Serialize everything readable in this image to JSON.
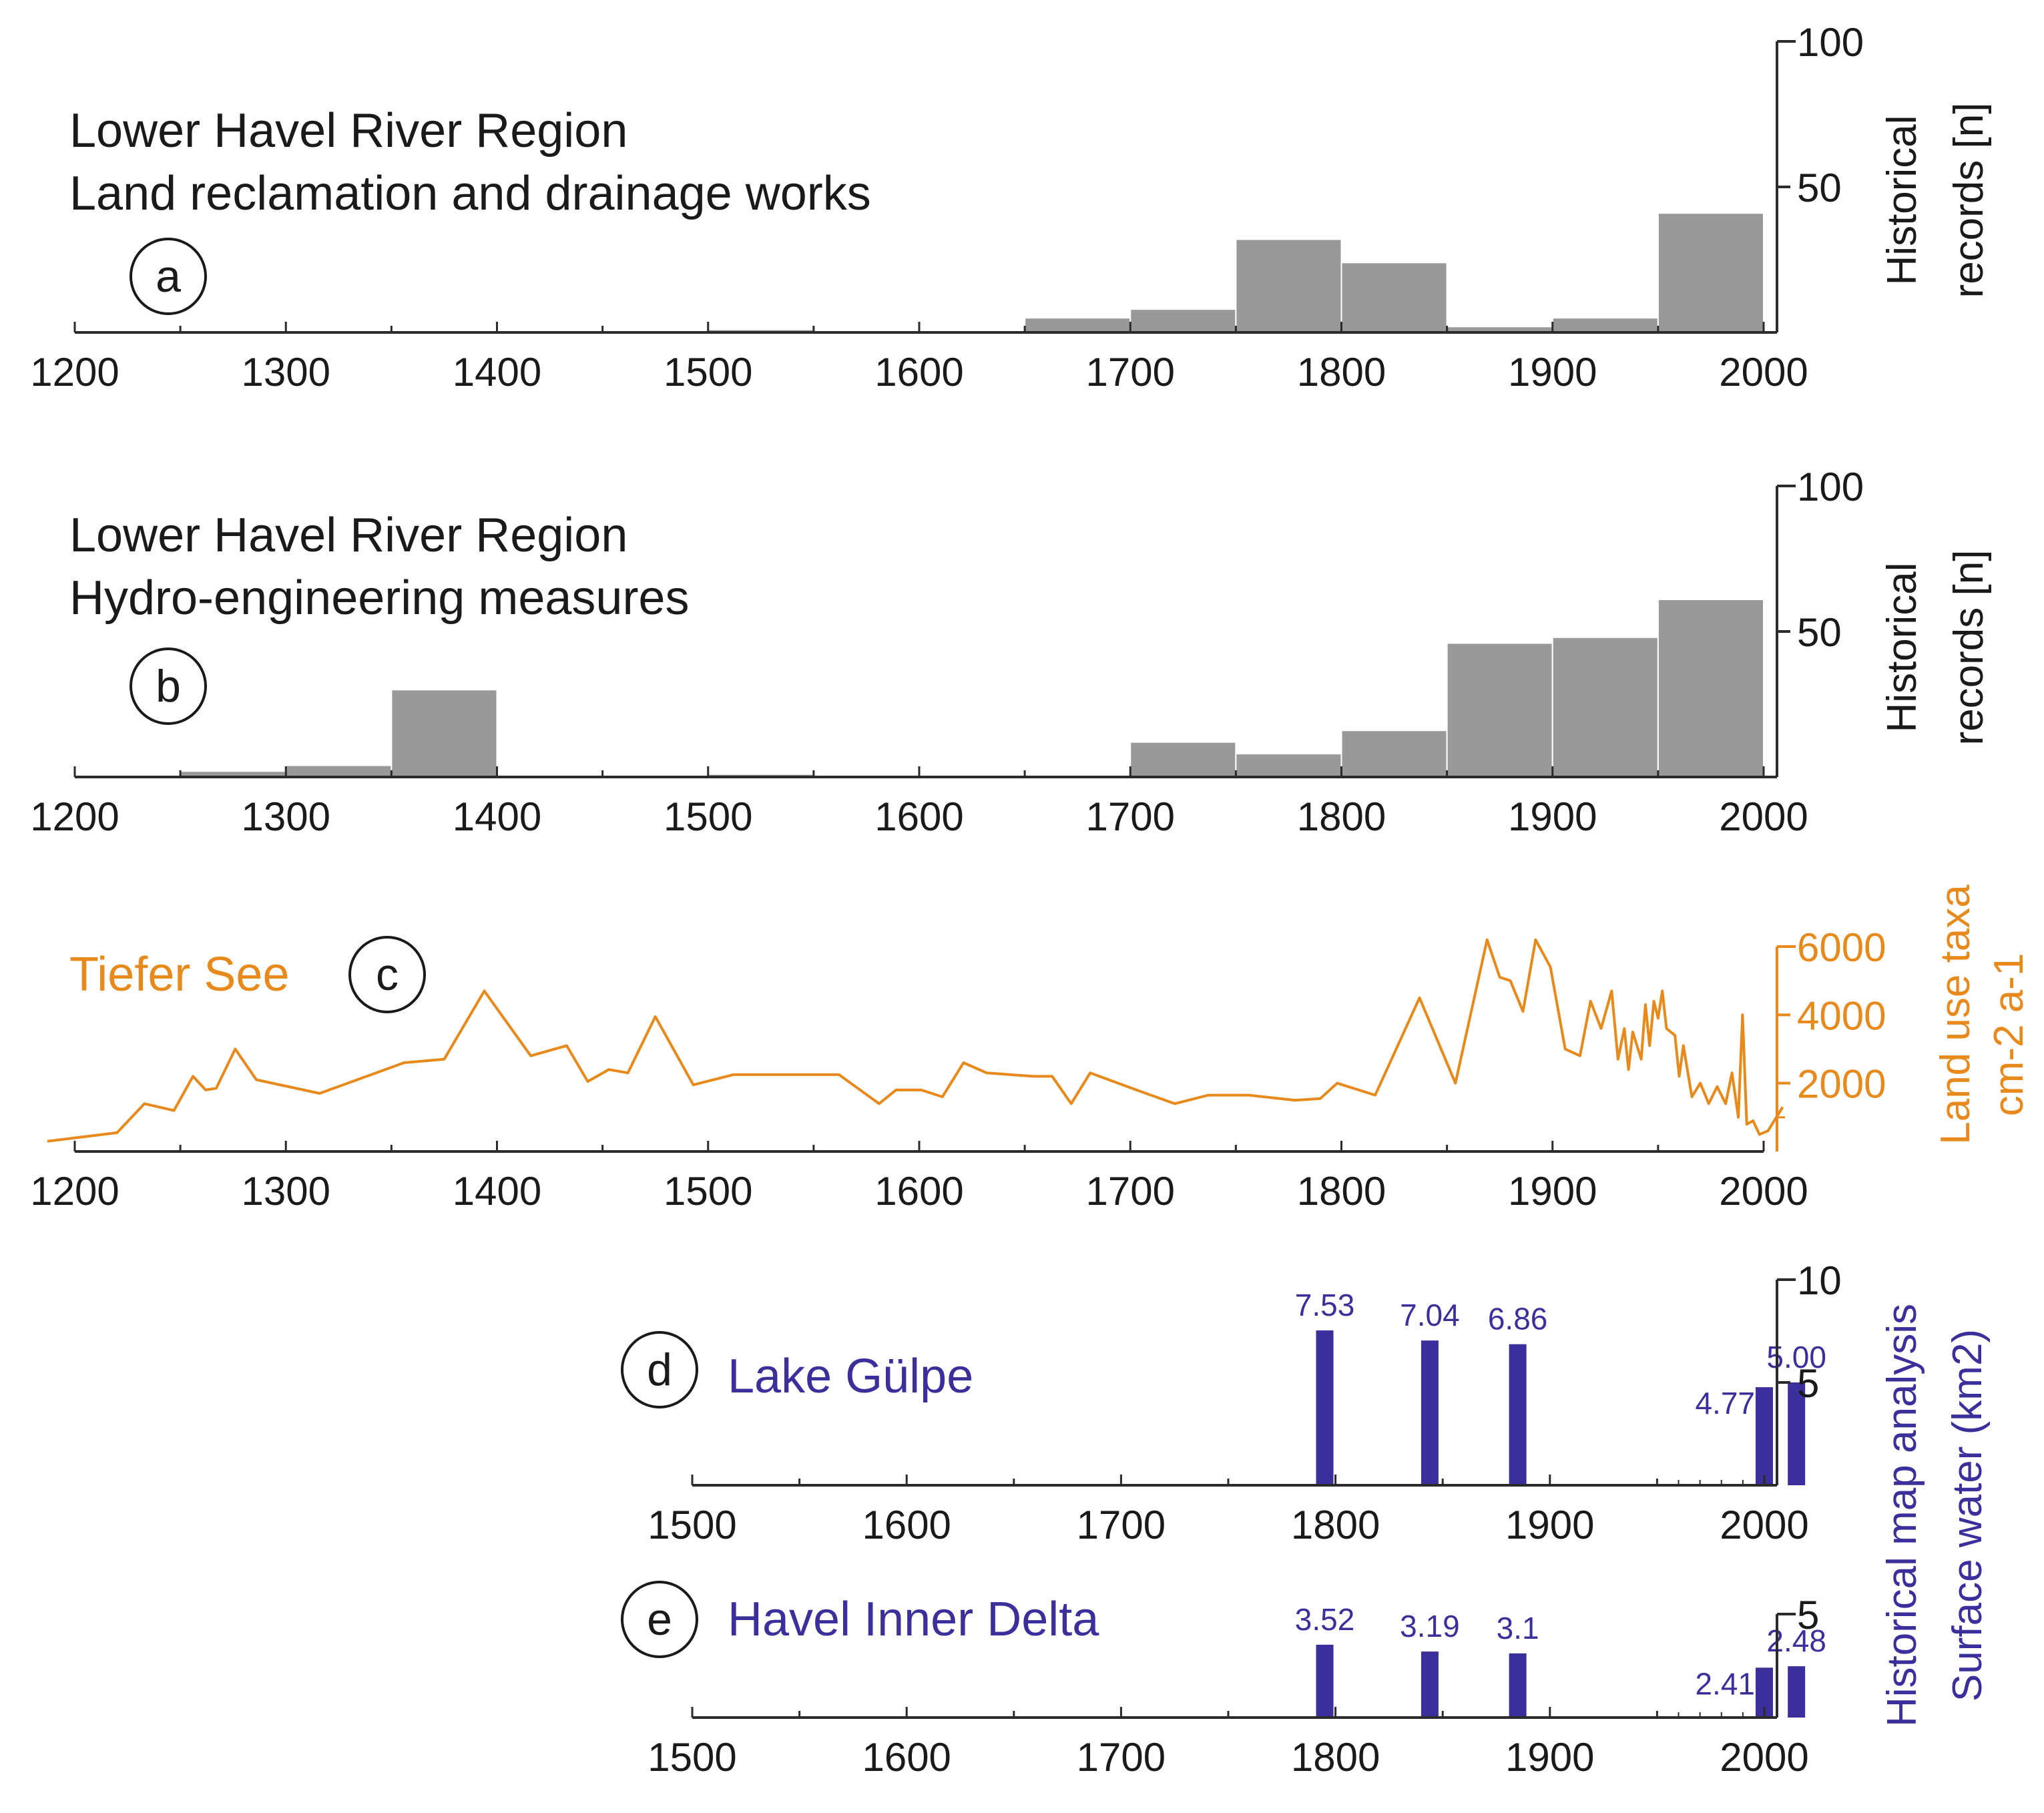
{
  "colors": {
    "bar_gray": "#999999",
    "axis": "#2b2b2b",
    "orange": "#e8891c",
    "blue": "#3b2f9c"
  },
  "chart_data": [
    {
      "id": "a",
      "type": "bar",
      "panel_letter": "a",
      "title_lines": [
        "Lower Havel River Region",
        "Land reclamation and drainage works"
      ],
      "ylabel_lines": [
        "Historical",
        "records [n]"
      ],
      "xlim": [
        1200,
        2000
      ],
      "ylim": [
        0,
        100
      ],
      "x_ticks": [
        1200,
        1300,
        1400,
        1500,
        1600,
        1700,
        1800,
        1900,
        2000
      ],
      "y_ticks": [
        50,
        100
      ],
      "bins": [
        {
          "start": 1500,
          "end": 1550,
          "value": 1
        },
        {
          "start": 1650,
          "end": 1700,
          "value": 5
        },
        {
          "start": 1700,
          "end": 1750,
          "value": 8
        },
        {
          "start": 1750,
          "end": 1800,
          "value": 32
        },
        {
          "start": 1800,
          "end": 1850,
          "value": 24
        },
        {
          "start": 1850,
          "end": 1900,
          "value": 2
        },
        {
          "start": 1900,
          "end": 1950,
          "value": 5
        },
        {
          "start": 1950,
          "end": 2000,
          "value": 41
        }
      ]
    },
    {
      "id": "b",
      "type": "bar",
      "panel_letter": "b",
      "title_lines": [
        "Lower Havel River Region",
        "Hydro-engineering measures"
      ],
      "ylabel_lines": [
        "Historical",
        "records [n]"
      ],
      "xlim": [
        1200,
        2000
      ],
      "ylim": [
        0,
        100
      ],
      "x_ticks": [
        1200,
        1300,
        1400,
        1500,
        1600,
        1700,
        1800,
        1900,
        2000
      ],
      "y_ticks": [
        50,
        100
      ],
      "bins": [
        {
          "start": 1250,
          "end": 1300,
          "value": 2
        },
        {
          "start": 1300,
          "end": 1350,
          "value": 4
        },
        {
          "start": 1350,
          "end": 1400,
          "value": 30
        },
        {
          "start": 1500,
          "end": 1550,
          "value": 1
        },
        {
          "start": 1700,
          "end": 1750,
          "value": 12
        },
        {
          "start": 1750,
          "end": 1800,
          "value": 8
        },
        {
          "start": 1800,
          "end": 1850,
          "value": 16
        },
        {
          "start": 1850,
          "end": 1900,
          "value": 46
        },
        {
          "start": 1900,
          "end": 1950,
          "value": 48
        },
        {
          "start": 1950,
          "end": 2000,
          "value": 61
        }
      ]
    },
    {
      "id": "c",
      "type": "line",
      "panel_letter": "c",
      "title": "Tiefer See",
      "ylabel_lines": [
        "Land use taxa",
        "cm-2 a-1"
      ],
      "xlim": [
        1200,
        2000
      ],
      "ylim": [
        0,
        6000
      ],
      "x_ticks": [
        1200,
        1300,
        1400,
        1500,
        1600,
        1700,
        1800,
        1900,
        2000
      ],
      "y_ticks": [
        2000,
        4000,
        6000
      ],
      "x": [
        1187,
        1220,
        1233,
        1247,
        1256,
        1262,
        1267,
        1276,
        1286,
        1316,
        1356,
        1375,
        1394,
        1416,
        1433,
        1443,
        1453,
        1462,
        1475,
        1493,
        1512,
        1562,
        1581,
        1589,
        1601,
        1611,
        1621,
        1632,
        1654,
        1663,
        1672,
        1681,
        1703,
        1721,
        1737,
        1756,
        1778,
        1790,
        1798,
        1816,
        1837,
        1854,
        1869,
        1875,
        1880,
        1886,
        1892,
        1899,
        1906,
        1913,
        1918,
        1923,
        1928,
        1931,
        1934,
        1936,
        1938,
        1942,
        1944,
        1946,
        1948,
        1950,
        1952,
        1954,
        1956,
        1958,
        1960,
        1962,
        1966,
        1970,
        1974,
        1978,
        1982,
        1985,
        1988,
        1990,
        1992,
        1995,
        1998,
        2002,
        2005,
        2009
      ],
      "y": [
        300,
        550,
        1400,
        1200,
        2200,
        1800,
        1850,
        3000,
        2100,
        1700,
        2600,
        2700,
        4700,
        2800,
        3100,
        2050,
        2400,
        2300,
        3950,
        1950,
        2250,
        2250,
        1400,
        1800,
        1800,
        1600,
        2600,
        2300,
        2200,
        2200,
        1400,
        2300,
        1800,
        1400,
        1650,
        1650,
        1500,
        1550,
        2000,
        1650,
        4500,
        2000,
        6200,
        5100,
        5000,
        4100,
        6200,
        5400,
        3000,
        2800,
        4400,
        3600,
        4700,
        2700,
        3600,
        2400,
        3500,
        2700,
        4300,
        3100,
        4400,
        3900,
        4700,
        3600,
        3500,
        3400,
        2200,
        3100,
        1600,
        2000,
        1400,
        1900,
        1400,
        2300,
        1000,
        4000,
        800,
        900,
        500,
        600,
        900,
        1300
      ]
    },
    {
      "id": "d",
      "type": "bar",
      "panel_letter": "d",
      "title": "Lake Gülpe",
      "xlim": [
        1500,
        2020
      ],
      "ylim": [
        0,
        10
      ],
      "x_ticks": [
        1500,
        1600,
        1700,
        1800,
        1900,
        2000
      ],
      "y_ticks": [
        5,
        10
      ],
      "bars": [
        {
          "year": 1795,
          "value": 7.53,
          "label": "7.53"
        },
        {
          "year": 1844,
          "value": 7.04,
          "label": "7.04"
        },
        {
          "year": 1885,
          "value": 6.86,
          "label": "6.86"
        },
        {
          "year": 2000,
          "value": 4.77,
          "label": "4.77"
        },
        {
          "year": 2015,
          "value": 5.0,
          "label": "5.00"
        }
      ]
    },
    {
      "id": "e",
      "type": "bar",
      "panel_letter": "e",
      "title": "Havel Inner Delta",
      "xlim": [
        1500,
        2020
      ],
      "ylim": [
        0,
        5
      ],
      "x_ticks": [
        1500,
        1600,
        1700,
        1800,
        1900,
        2000
      ],
      "y_ticks": [
        5
      ],
      "ylabel_lines": [
        "Historical map analysis",
        "Surface water (km2)"
      ],
      "bars": [
        {
          "year": 1795,
          "value": 3.52,
          "label": "3.52"
        },
        {
          "year": 1844,
          "value": 3.19,
          "label": "3.19"
        },
        {
          "year": 1885,
          "value": 3.1,
          "label": "3.1"
        },
        {
          "year": 2000,
          "value": 2.41,
          "label": "2.41"
        },
        {
          "year": 2015,
          "value": 2.48,
          "label": "2.48"
        }
      ]
    }
  ]
}
